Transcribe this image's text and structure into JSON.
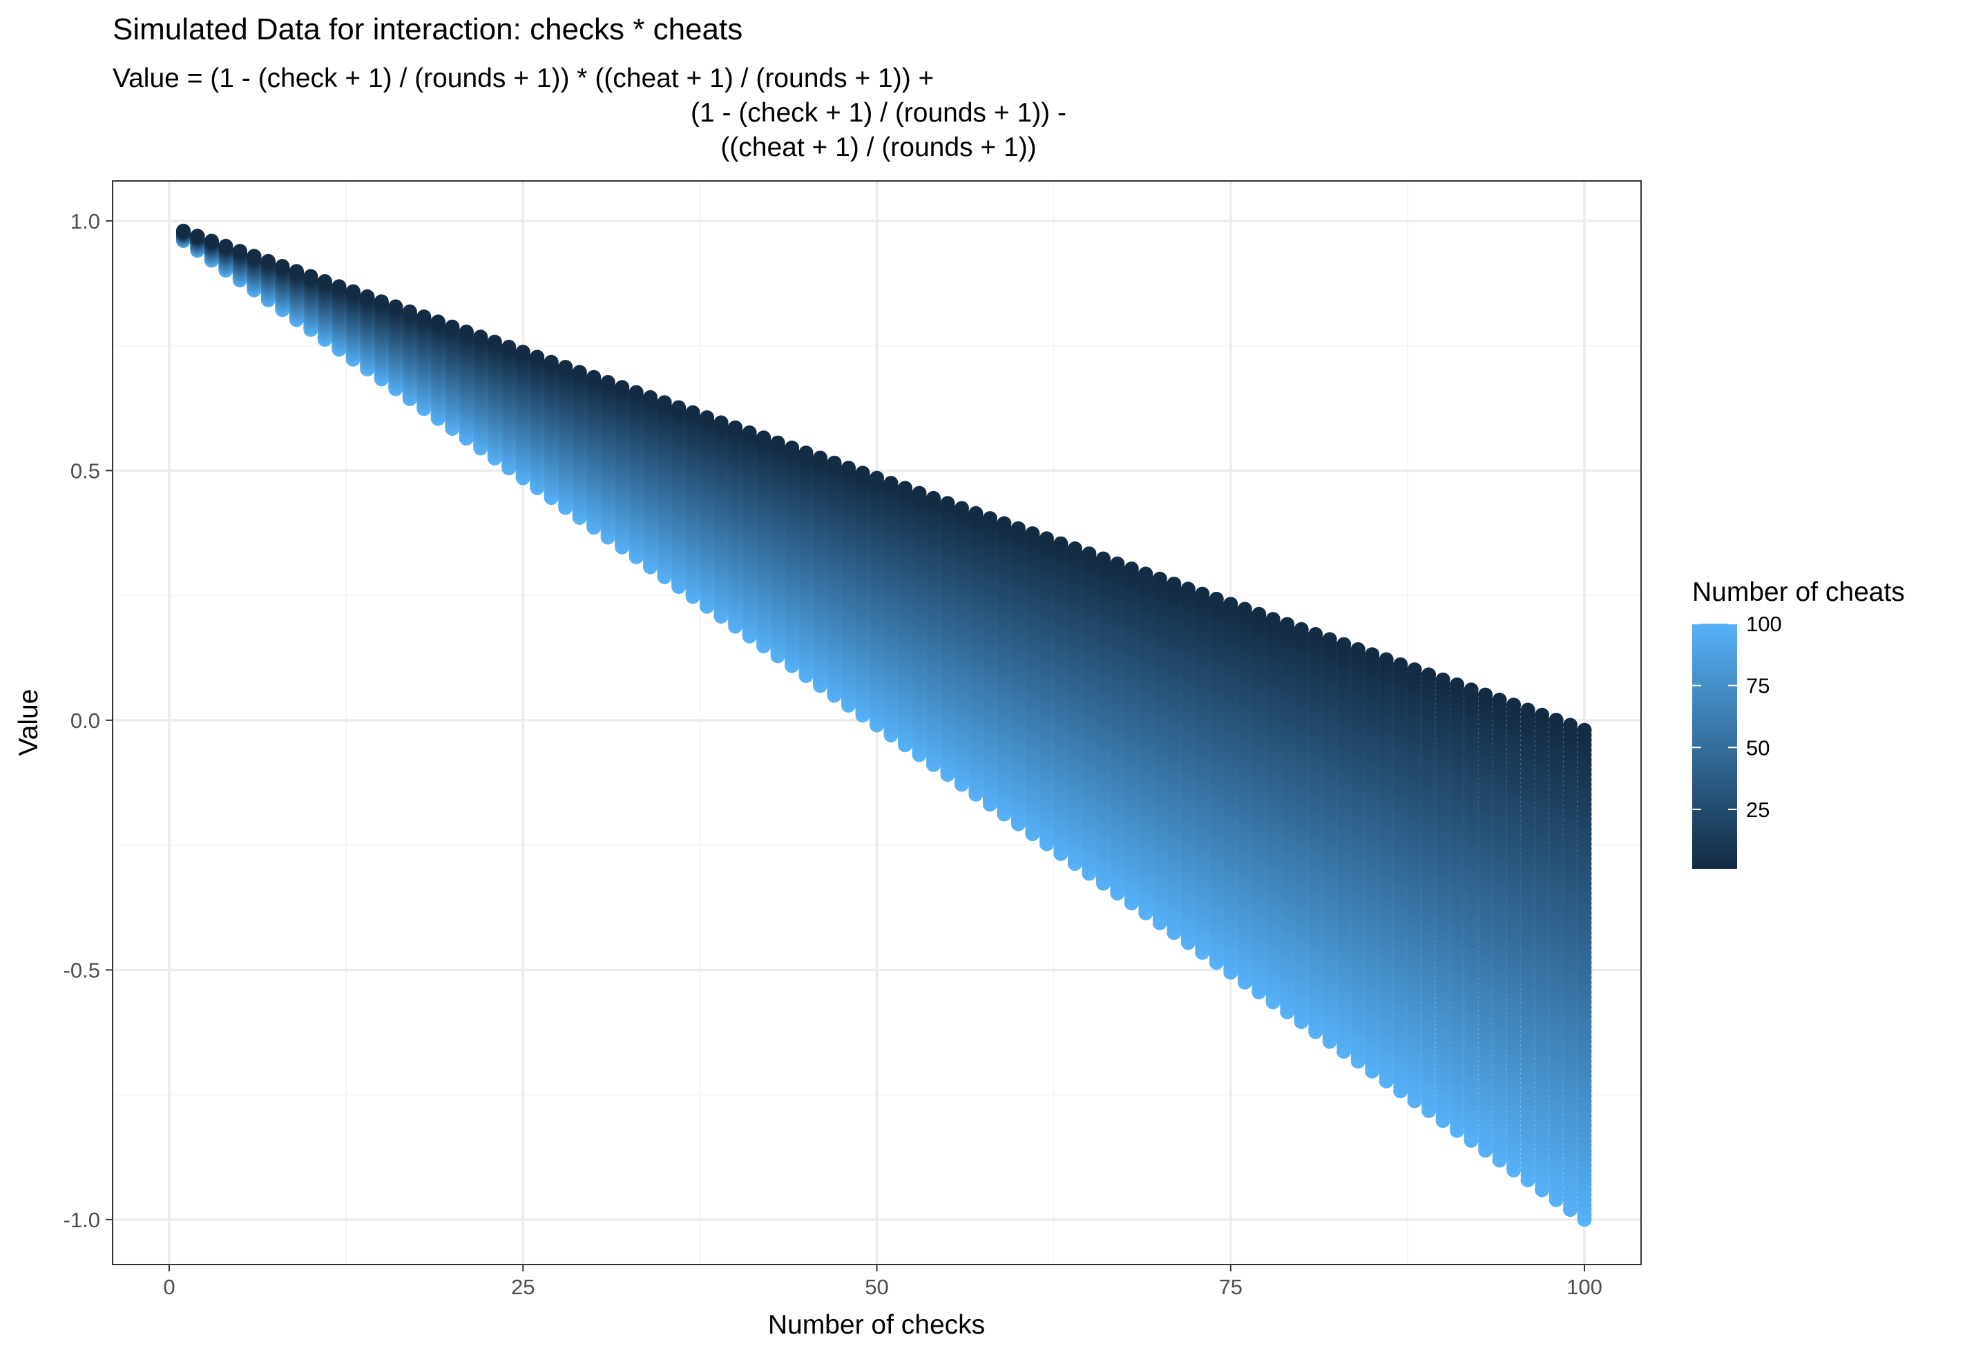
{
  "chart_data": {
    "type": "scatter",
    "title": "Simulated Data for interaction: checks * cheats",
    "subtitle_lines": [
      "Value = (1 - (check + 1) / (rounds + 1)) * ((cheat + 1) / (rounds + 1)) +",
      "(1 - (check + 1) / (rounds + 1)) -",
      "((cheat + 1) / (rounds + 1))"
    ],
    "formula": {
      "rounds": 100,
      "x_variable": "check",
      "color_variable": "cheat",
      "x_values": "1..100",
      "color_values": "1..100",
      "point_count": 10000
    },
    "xlabel": "Number of checks",
    "ylabel": "Value",
    "xlim": [
      -4,
      104
    ],
    "ylim": [
      -1.09,
      1.08
    ],
    "x_ticks": [
      0,
      25,
      50,
      75,
      100
    ],
    "x_tick_labels": [
      "0",
      "25",
      "50",
      "75",
      "100"
    ],
    "y_ticks": [
      -1.0,
      -0.5,
      0.0,
      0.5,
      1.0
    ],
    "y_tick_labels": [
      "-1.0",
      "-0.5",
      "0.0",
      "0.5",
      "1.0"
    ],
    "grid": true,
    "theme": "bw",
    "legend": {
      "title": "Number of cheats",
      "placement": "right",
      "type": "colorbar",
      "range": [
        1,
        100
      ],
      "ticks": [
        25,
        50,
        75,
        100
      ],
      "tick_labels": [
        "25",
        "50",
        "75",
        "100"
      ],
      "color_low": "#132B43",
      "color_high": "#56B1F7"
    },
    "colors": {
      "panel_border": "#333333",
      "grid_major": "#ebebeb",
      "grid_minor": "#f5f5f5"
    }
  }
}
